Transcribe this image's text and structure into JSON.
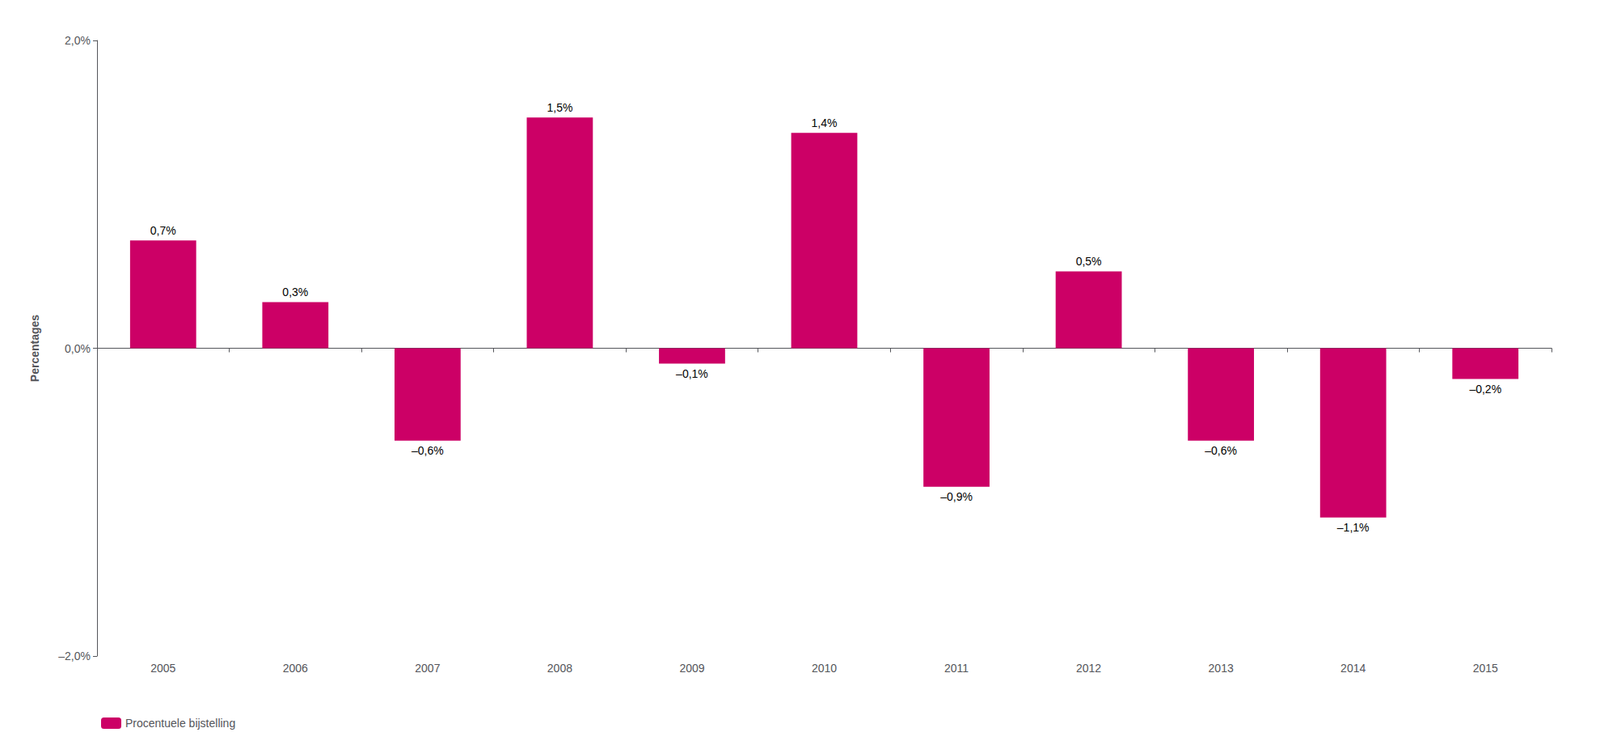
{
  "chart_data": {
    "type": "bar",
    "categories": [
      "2005",
      "2006",
      "2007",
      "2008",
      "2009",
      "2010",
      "2011",
      "2012",
      "2013",
      "2014",
      "2015"
    ],
    "series": [
      {
        "name": "Procentuele bijstelling",
        "color": "#CC0066",
        "values": [
          0.7,
          0.3,
          -0.6,
          1.5,
          -0.1,
          1.4,
          -0.9,
          0.5,
          -0.6,
          -1.1,
          -0.2
        ],
        "value_labels": [
          "0,7%",
          "0,3%",
          "–0,6%",
          "1,5%",
          "–0,1%",
          "1,4%",
          "–0,9%",
          "0,5%",
          "–0,6%",
          "–1,1%",
          "–0,2%"
        ]
      }
    ],
    "ylabel": "Percentages",
    "ylim": [
      -2.0,
      2.0
    ],
    "yticks": [
      {
        "value": -2.0,
        "label": "–2,0%"
      },
      {
        "value": 0.0,
        "label": "0,0%"
      },
      {
        "value": 2.0,
        "label": "2,0%"
      }
    ],
    "grid": false,
    "legend": "bottom-left",
    "data_labels": true
  }
}
